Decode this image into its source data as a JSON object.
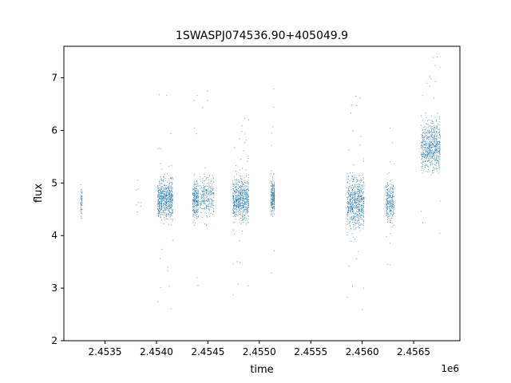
{
  "chart_data": {
    "type": "scatter",
    "title": "1SWASPJ074536.90+405049.9",
    "xlabel": "time",
    "ylabel": "flux",
    "x_offset_label": "1e6",
    "xlim": [
      2453100,
      2456950
    ],
    "ylim": [
      2.0,
      7.6
    ],
    "x_ticks": [
      2453500,
      2454000,
      2454500,
      2455000,
      2455500,
      2456000,
      2456500
    ],
    "x_tick_labels": [
      "2.4535",
      "2.4540",
      "2.4545",
      "2.4550",
      "2.4555",
      "2.4560",
      "2.4565"
    ],
    "y_ticks": [
      2,
      3,
      4,
      5,
      6,
      7
    ],
    "y_tick_labels": [
      "2",
      "3",
      "4",
      "5",
      "6",
      "7"
    ],
    "grid": false,
    "marker": "point",
    "color": "#1f77b4",
    "observing_seasons": [
      {
        "x_start": 2453260,
        "x_end": 2453280,
        "y_center": 4.65,
        "y_spread": 0.25,
        "density": "low"
      },
      {
        "x_start": 2453800,
        "x_end": 2453850,
        "y_center": 4.7,
        "y_spread": 0.3,
        "density": "very-low"
      },
      {
        "x_start": 2454010,
        "x_end": 2454160,
        "y_center": 4.7,
        "y_spread": 0.35,
        "density": "high"
      },
      {
        "x_start": 2454350,
        "x_end": 2454410,
        "y_center": 4.7,
        "y_spread": 0.3,
        "density": "medium"
      },
      {
        "x_start": 2454420,
        "x_end": 2454560,
        "y_center": 4.75,
        "y_spread": 0.35,
        "density": "medium"
      },
      {
        "x_start": 2454740,
        "x_end": 2454900,
        "y_center": 4.7,
        "y_spread": 0.35,
        "density": "high"
      },
      {
        "x_start": 2455110,
        "x_end": 2455150,
        "y_center": 4.75,
        "y_spread": 0.3,
        "density": "medium"
      },
      {
        "x_start": 2455850,
        "x_end": 2456020,
        "y_center": 4.65,
        "y_spread": 0.45,
        "density": "high"
      },
      {
        "x_start": 2456230,
        "x_end": 2456310,
        "y_center": 4.65,
        "y_spread": 0.35,
        "density": "medium"
      },
      {
        "x_start": 2456570,
        "x_end": 2456760,
        "y_center": 5.7,
        "y_spread": 0.4,
        "density": "high"
      }
    ]
  }
}
